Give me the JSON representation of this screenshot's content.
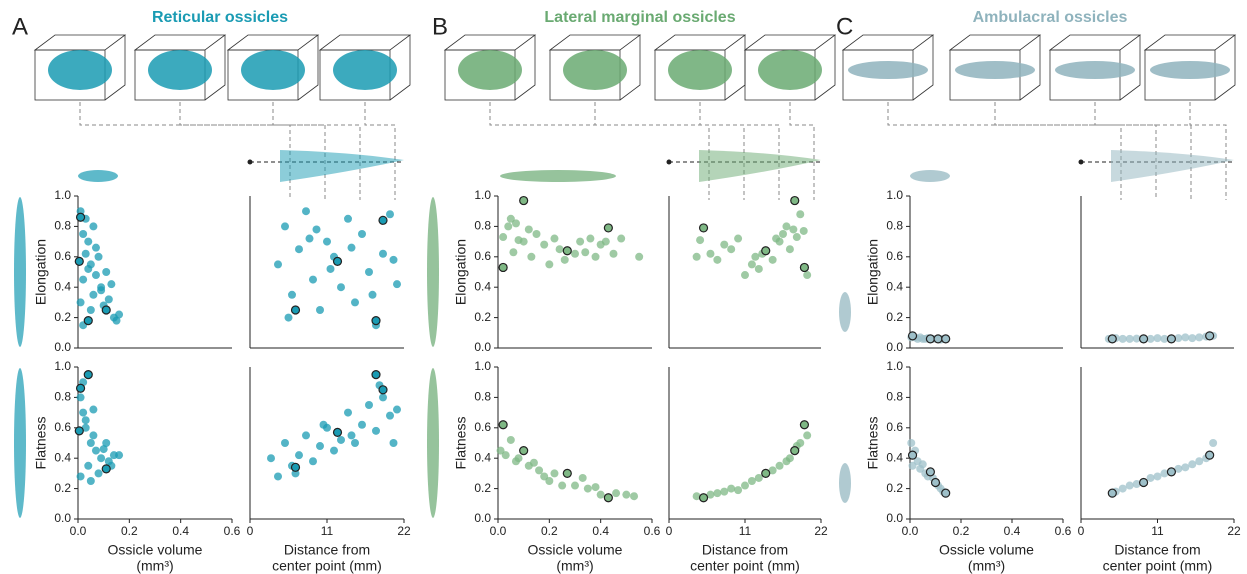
{
  "figure": {
    "panels": [
      {
        "letter": "A",
        "title": "Reticular ossicles",
        "color": "#1a9bb3"
      },
      {
        "letter": "B",
        "title": "Lateral marginal ossicles",
        "color": "#6aaa72"
      },
      {
        "letter": "C",
        "title": "Ambulacral ossicles",
        "color": "#8fb3bd"
      }
    ]
  },
  "chart_data": [
    {
      "type": "scatter",
      "ylabel": "Elongation",
      "xlim": [
        0,
        0.6
      ],
      "ylim": [
        0,
        1
      ],
      "yticks": [
        {
          "value": 0,
          "label": "0.0"
        },
        0.2,
        0.4,
        0.6,
        0.8,
        {
          "value": 1,
          "label": "1.0"
        }
      ],
      "series": [
        {
          "color": "#1a9bb3",
          "x": [
            0.01,
            0.02,
            0.03,
            0.05,
            0.07,
            0.09,
            0.12,
            0.14,
            0.02,
            0.04,
            0.06,
            0.08,
            0.1,
            0.13,
            0.15,
            0.01,
            0.03,
            0.05,
            0.07,
            0.11,
            0.02,
            0.06,
            0.09,
            0.16,
            0.04
          ],
          "values": [
            0.9,
            0.75,
            0.62,
            0.55,
            0.48,
            0.4,
            0.32,
            0.2,
            0.45,
            0.7,
            0.35,
            0.6,
            0.28,
            0.42,
            0.18,
            0.3,
            0.85,
            0.25,
            0.66,
            0.5,
            0.15,
            0.8,
            0.38,
            0.22,
            0.52
          ]
        },
        {
          "color": "#1a9bb3",
          "edgecolor": "#222222",
          "x": [
            0.005,
            0.04,
            0.11,
            0.01
          ],
          "values": [
            0.57,
            0.18,
            0.25,
            0.86
          ]
        }
      ]
    },
    {
      "type": "scatter",
      "xlim": [
        0,
        22
      ],
      "ylim": [
        0,
        1
      ],
      "series": [
        {
          "color": "#1a9bb3",
          "x": [
            4,
            5,
            6,
            7,
            8,
            9,
            10,
            11,
            12,
            13,
            14,
            15,
            16,
            17,
            18,
            19,
            20,
            21,
            5.5,
            8.5,
            11.5,
            14.5,
            17.5,
            20.5,
            9.5
          ],
          "values": [
            0.55,
            0.8,
            0.35,
            0.65,
            0.9,
            0.45,
            0.25,
            0.7,
            0.6,
            0.4,
            0.85,
            0.3,
            0.75,
            0.5,
            0.15,
            0.62,
            0.88,
            0.42,
            0.2,
            0.72,
            0.52,
            0.66,
            0.35,
            0.58,
            0.78
          ]
        },
        {
          "color": "#1a9bb3",
          "edgecolor": "#222222",
          "x": [
            12.5,
            18,
            6.5,
            19
          ],
          "values": [
            0.57,
            0.18,
            0.25,
            0.84
          ]
        }
      ]
    },
    {
      "type": "scatter",
      "ylabel": "Flatness",
      "xlabel": [
        "Ossicle volume",
        "(mm³)"
      ],
      "xlim": [
        0,
        0.6
      ],
      "ylim": [
        0,
        1
      ],
      "xticks": [
        {
          "value": 0,
          "label": "0.0"
        },
        0.2,
        0.4,
        0.6
      ],
      "yticks": [
        {
          "value": 0,
          "label": "0.0"
        },
        0.2,
        0.4,
        0.6,
        0.8,
        {
          "value": 1,
          "label": "1.0"
        }
      ],
      "series": [
        {
          "color": "#1a9bb3",
          "x": [
            0.01,
            0.02,
            0.03,
            0.05,
            0.07,
            0.09,
            0.12,
            0.14,
            0.02,
            0.04,
            0.06,
            0.08,
            0.1,
            0.13,
            0.01,
            0.03,
            0.05,
            0.11,
            0.06,
            0.16
          ],
          "values": [
            0.8,
            0.7,
            0.6,
            0.5,
            0.45,
            0.4,
            0.38,
            0.42,
            0.9,
            0.35,
            0.55,
            0.3,
            0.46,
            0.35,
            0.28,
            0.65,
            0.25,
            0.5,
            0.72,
            0.42
          ]
        },
        {
          "color": "#1a9bb3",
          "edgecolor": "#222222",
          "x": [
            0.04,
            0.01,
            0.005,
            0.11
          ],
          "values": [
            0.95,
            0.86,
            0.58,
            0.33
          ]
        }
      ]
    },
    {
      "type": "scatter",
      "xlabel": [
        "Distance from",
        "center point (mm)"
      ],
      "xlim": [
        0,
        22
      ],
      "ylim": [
        0,
        1
      ],
      "xticks": [
        0,
        11,
        22
      ],
      "series": [
        {
          "color": "#1a9bb3",
          "x": [
            3,
            4,
            5,
            6,
            7,
            8,
            9,
            10,
            11,
            12,
            13,
            14,
            15,
            16,
            17,
            18,
            19,
            20,
            21,
            6.5,
            10.5,
            14.5,
            18.5,
            20.5
          ],
          "values": [
            0.4,
            0.28,
            0.5,
            0.35,
            0.42,
            0.55,
            0.38,
            0.48,
            0.6,
            0.45,
            0.52,
            0.7,
            0.5,
            0.62,
            0.75,
            0.58,
            0.8,
            0.68,
            0.72,
            0.3,
            0.62,
            0.55,
            0.88,
            0.5
          ]
        },
        {
          "color": "#1a9bb3",
          "edgecolor": "#222222",
          "x": [
            18,
            19,
            12.5,
            6.5
          ],
          "values": [
            0.95,
            0.85,
            0.57,
            0.34
          ]
        }
      ]
    },
    {
      "type": "scatter",
      "ylabel": "Elongation",
      "xlim": [
        0,
        0.6
      ],
      "ylim": [
        0,
        1
      ],
      "yticks": [
        {
          "value": 0,
          "label": "0.0"
        },
        0.2,
        0.4,
        0.6,
        0.8,
        {
          "value": 1,
          "label": "1.0"
        }
      ],
      "series": [
        {
          "color": "#7fb885",
          "x": [
            0.02,
            0.04,
            0.05,
            0.07,
            0.08,
            0.1,
            0.12,
            0.13,
            0.15,
            0.18,
            0.2,
            0.22,
            0.24,
            0.26,
            0.3,
            0.32,
            0.34,
            0.36,
            0.38,
            0.4,
            0.42,
            0.45,
            0.48,
            0.55,
            0.06
          ],
          "values": [
            0.73,
            0.8,
            0.85,
            0.82,
            0.71,
            0.7,
            0.78,
            0.6,
            0.75,
            0.68,
            0.55,
            0.72,
            0.65,
            0.58,
            0.62,
            0.7,
            0.63,
            0.72,
            0.6,
            0.68,
            0.7,
            0.62,
            0.72,
            0.6,
            0.63
          ]
        },
        {
          "color": "#7fb885",
          "edgecolor": "#222222",
          "x": [
            0.02,
            0.1,
            0.27,
            0.43
          ],
          "values": [
            0.53,
            0.97,
            0.64,
            0.79
          ]
        }
      ]
    },
    {
      "type": "scatter",
      "xlim": [
        0,
        22
      ],
      "ylim": [
        0,
        1
      ],
      "series": [
        {
          "color": "#7fb885",
          "x": [
            4,
            4.5,
            6,
            7,
            8,
            9,
            10,
            11,
            12,
            12.5,
            13,
            13.5,
            15,
            15.5,
            16,
            16.5,
            17,
            17.5,
            18,
            18.5,
            19,
            19.5,
            20
          ],
          "values": [
            0.6,
            0.71,
            0.62,
            0.58,
            0.68,
            0.65,
            0.72,
            0.48,
            0.55,
            0.6,
            0.52,
            0.62,
            0.58,
            0.72,
            0.7,
            0.75,
            0.8,
            0.65,
            0.78,
            0.73,
            0.88,
            0.77,
            0.48
          ]
        },
        {
          "color": "#7fb885",
          "edgecolor": "#222222",
          "x": [
            5,
            14,
            18.2,
            19.6
          ],
          "values": [
            0.79,
            0.64,
            0.97,
            0.53
          ]
        }
      ]
    },
    {
      "type": "scatter",
      "ylabel": "Flatness",
      "xlabel": [
        "Ossicle volume",
        "(mm³)"
      ],
      "xlim": [
        0,
        0.6
      ],
      "ylim": [
        0,
        1
      ],
      "xticks": [
        {
          "value": 0,
          "label": "0.0"
        },
        0.2,
        0.4,
        0.6
      ],
      "yticks": [
        {
          "value": 0,
          "label": "0.0"
        },
        0.2,
        0.4,
        0.6,
        0.8,
        {
          "value": 1,
          "label": "1.0"
        }
      ],
      "series": [
        {
          "color": "#7fb885",
          "x": [
            0.01,
            0.03,
            0.05,
            0.07,
            0.08,
            0.12,
            0.14,
            0.16,
            0.18,
            0.2,
            0.22,
            0.25,
            0.3,
            0.33,
            0.35,
            0.38,
            0.4,
            0.46,
            0.5,
            0.53
          ],
          "values": [
            0.45,
            0.42,
            0.52,
            0.38,
            0.4,
            0.35,
            0.37,
            0.32,
            0.28,
            0.25,
            0.3,
            0.22,
            0.22,
            0.27,
            0.2,
            0.21,
            0.16,
            0.17,
            0.16,
            0.15
          ]
        },
        {
          "color": "#7fb885",
          "edgecolor": "#222222",
          "x": [
            0.02,
            0.1,
            0.27,
            0.43
          ],
          "values": [
            0.62,
            0.45,
            0.3,
            0.14
          ]
        }
      ]
    },
    {
      "type": "scatter",
      "xlabel": [
        "Distance from",
        "center point (mm)"
      ],
      "xlim": [
        0,
        22
      ],
      "ylim": [
        0,
        1
      ],
      "xticks": [
        0,
        11,
        22
      ],
      "series": [
        {
          "color": "#7fb885",
          "x": [
            4,
            6,
            7,
            8,
            9,
            10,
            11,
            12,
            13,
            15,
            16,
            17,
            17.5,
            18.5,
            19,
            20
          ],
          "values": [
            0.15,
            0.16,
            0.17,
            0.18,
            0.2,
            0.19,
            0.22,
            0.25,
            0.27,
            0.32,
            0.35,
            0.38,
            0.4,
            0.48,
            0.5,
            0.55
          ]
        },
        {
          "color": "#7fb885",
          "edgecolor": "#222222",
          "x": [
            5,
            14,
            18.2,
            19.6
          ],
          "values": [
            0.14,
            0.3,
            0.45,
            0.62
          ]
        }
      ]
    },
    {
      "type": "scatter",
      "ylabel": "Elongation",
      "xlim": [
        0,
        0.6
      ],
      "ylim": [
        0,
        1
      ],
      "yticks": [
        {
          "value": 0,
          "label": "0.0"
        },
        0.2,
        0.4,
        0.6,
        0.8,
        {
          "value": 1,
          "label": "1.0"
        }
      ],
      "series": [
        {
          "color": "#9ec0c9",
          "x": [
            0.005,
            0.02,
            0.03,
            0.04,
            0.05,
            0.06,
            0.07,
            0.09,
            0.12,
            0.13
          ],
          "values": [
            0.07,
            0.07,
            0.06,
            0.07,
            0.06,
            0.06,
            0.065,
            0.06,
            0.055,
            0.06
          ]
        },
        {
          "color": "#9ec0c9",
          "edgecolor": "#222222",
          "x": [
            0.01,
            0.08,
            0.11,
            0.14
          ],
          "values": [
            0.08,
            0.06,
            0.06,
            0.06
          ]
        }
      ]
    },
    {
      "type": "scatter",
      "xlim": [
        0,
        22
      ],
      "ylim": [
        0,
        1
      ],
      "series": [
        {
          "color": "#9ec0c9",
          "x": [
            4,
            5,
            6,
            7,
            8,
            10,
            11,
            12,
            14,
            15,
            16,
            17,
            18,
            19
          ],
          "values": [
            0.06,
            0.065,
            0.06,
            0.06,
            0.062,
            0.06,
            0.065,
            0.06,
            0.065,
            0.07,
            0.065,
            0.07,
            0.075,
            0.08
          ]
        },
        {
          "color": "#9ec0c9",
          "edgecolor": "#222222",
          "x": [
            4.5,
            9,
            13,
            18.5
          ],
          "values": [
            0.06,
            0.06,
            0.06,
            0.08
          ]
        }
      ]
    },
    {
      "type": "scatter",
      "ylabel": "Flatness",
      "xlabel": [
        "Ossicle volume",
        "(mm³)"
      ],
      "xlim": [
        0,
        0.6
      ],
      "ylim": [
        0,
        1
      ],
      "xticks": [
        {
          "value": 0,
          "label": "0.0"
        },
        0.2,
        0.4,
        0.6
      ],
      "yticks": [
        {
          "value": 0,
          "label": "0.0"
        },
        0.2,
        0.4,
        0.6,
        0.8,
        {
          "value": 1,
          "label": "1.0"
        }
      ],
      "series": [
        {
          "color": "#9ec0c9",
          "x": [
            0.005,
            0.01,
            0.02,
            0.03,
            0.04,
            0.05,
            0.06,
            0.07,
            0.09,
            0.11,
            0.12,
            0.13
          ],
          "values": [
            0.5,
            0.35,
            0.45,
            0.38,
            0.33,
            0.36,
            0.3,
            0.28,
            0.27,
            0.22,
            0.2,
            0.18
          ]
        },
        {
          "color": "#9ec0c9",
          "edgecolor": "#222222",
          "x": [
            0.01,
            0.08,
            0.1,
            0.14
          ],
          "values": [
            0.42,
            0.31,
            0.24,
            0.17
          ]
        }
      ]
    },
    {
      "type": "scatter",
      "xlabel": [
        "Distance from",
        "center point (mm)"
      ],
      "xlim": [
        0,
        22
      ],
      "ylim": [
        0,
        1
      ],
      "xticks": [
        0,
        11,
        22
      ],
      "series": [
        {
          "color": "#9ec0c9",
          "x": [
            5,
            6,
            7,
            8,
            10,
            11,
            12,
            14,
            15,
            16,
            17,
            18,
            19
          ],
          "values": [
            0.18,
            0.2,
            0.22,
            0.23,
            0.27,
            0.28,
            0.3,
            0.33,
            0.34,
            0.36,
            0.38,
            0.4,
            0.5
          ]
        },
        {
          "color": "#9ec0c9",
          "edgecolor": "#222222",
          "x": [
            4.5,
            9,
            13,
            18.5
          ],
          "values": [
            0.17,
            0.24,
            0.31,
            0.42
          ]
        }
      ]
    }
  ]
}
